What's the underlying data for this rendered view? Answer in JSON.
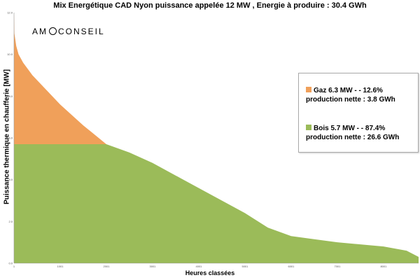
{
  "chart_data": {
    "type": "area",
    "title": "Mix Energétique CAD Nyon puissance appelée 12 MW , Energie à produire : 30.4 GWh",
    "xlabel": "Heures classées",
    "ylabel": "Puissance thermique en chaufferie [MW]",
    "xlim": [
      1,
      8760
    ],
    "ylim": [
      0,
      12
    ],
    "x_ticks": [
      "1",
      "1001",
      "2001",
      "3001",
      "4001",
      "5001",
      "6001",
      "7001",
      "8001"
    ],
    "y_ticks": [
      "0.0",
      "2.0",
      "4.0",
      "6.0",
      "8.0",
      "10.0",
      "12.0"
    ],
    "x": [
      1,
      10,
      50,
      100,
      200,
      400,
      700,
      1000,
      1500,
      2000,
      2500,
      3000,
      3500,
      4000,
      4500,
      5000,
      5500,
      6000,
      6500,
      7000,
      7500,
      8000,
      8500,
      8760
    ],
    "load": [
      12.0,
      11.0,
      10.4,
      10.0,
      9.6,
      9.0,
      8.3,
      7.6,
      6.6,
      5.7,
      5.3,
      4.8,
      4.2,
      3.6,
      3.0,
      2.4,
      1.7,
      1.3,
      1.15,
      1.0,
      0.9,
      0.8,
      0.6,
      0.3
    ],
    "cap_bois": 5.7,
    "series": [
      {
        "name": "Gaz 6.3 MW - - 12.6%",
        "detail": "production nette : 3.8 GWh",
        "color": "#f0a05a"
      },
      {
        "name": "Bois 5.7 MW - - 87.4%",
        "detail": "production nette : 26.6 GWh",
        "color": "#9bbb59"
      }
    ],
    "legend_position": "right",
    "grid": false
  },
  "logo_text": [
    "AM",
    "CONSEIL"
  ]
}
